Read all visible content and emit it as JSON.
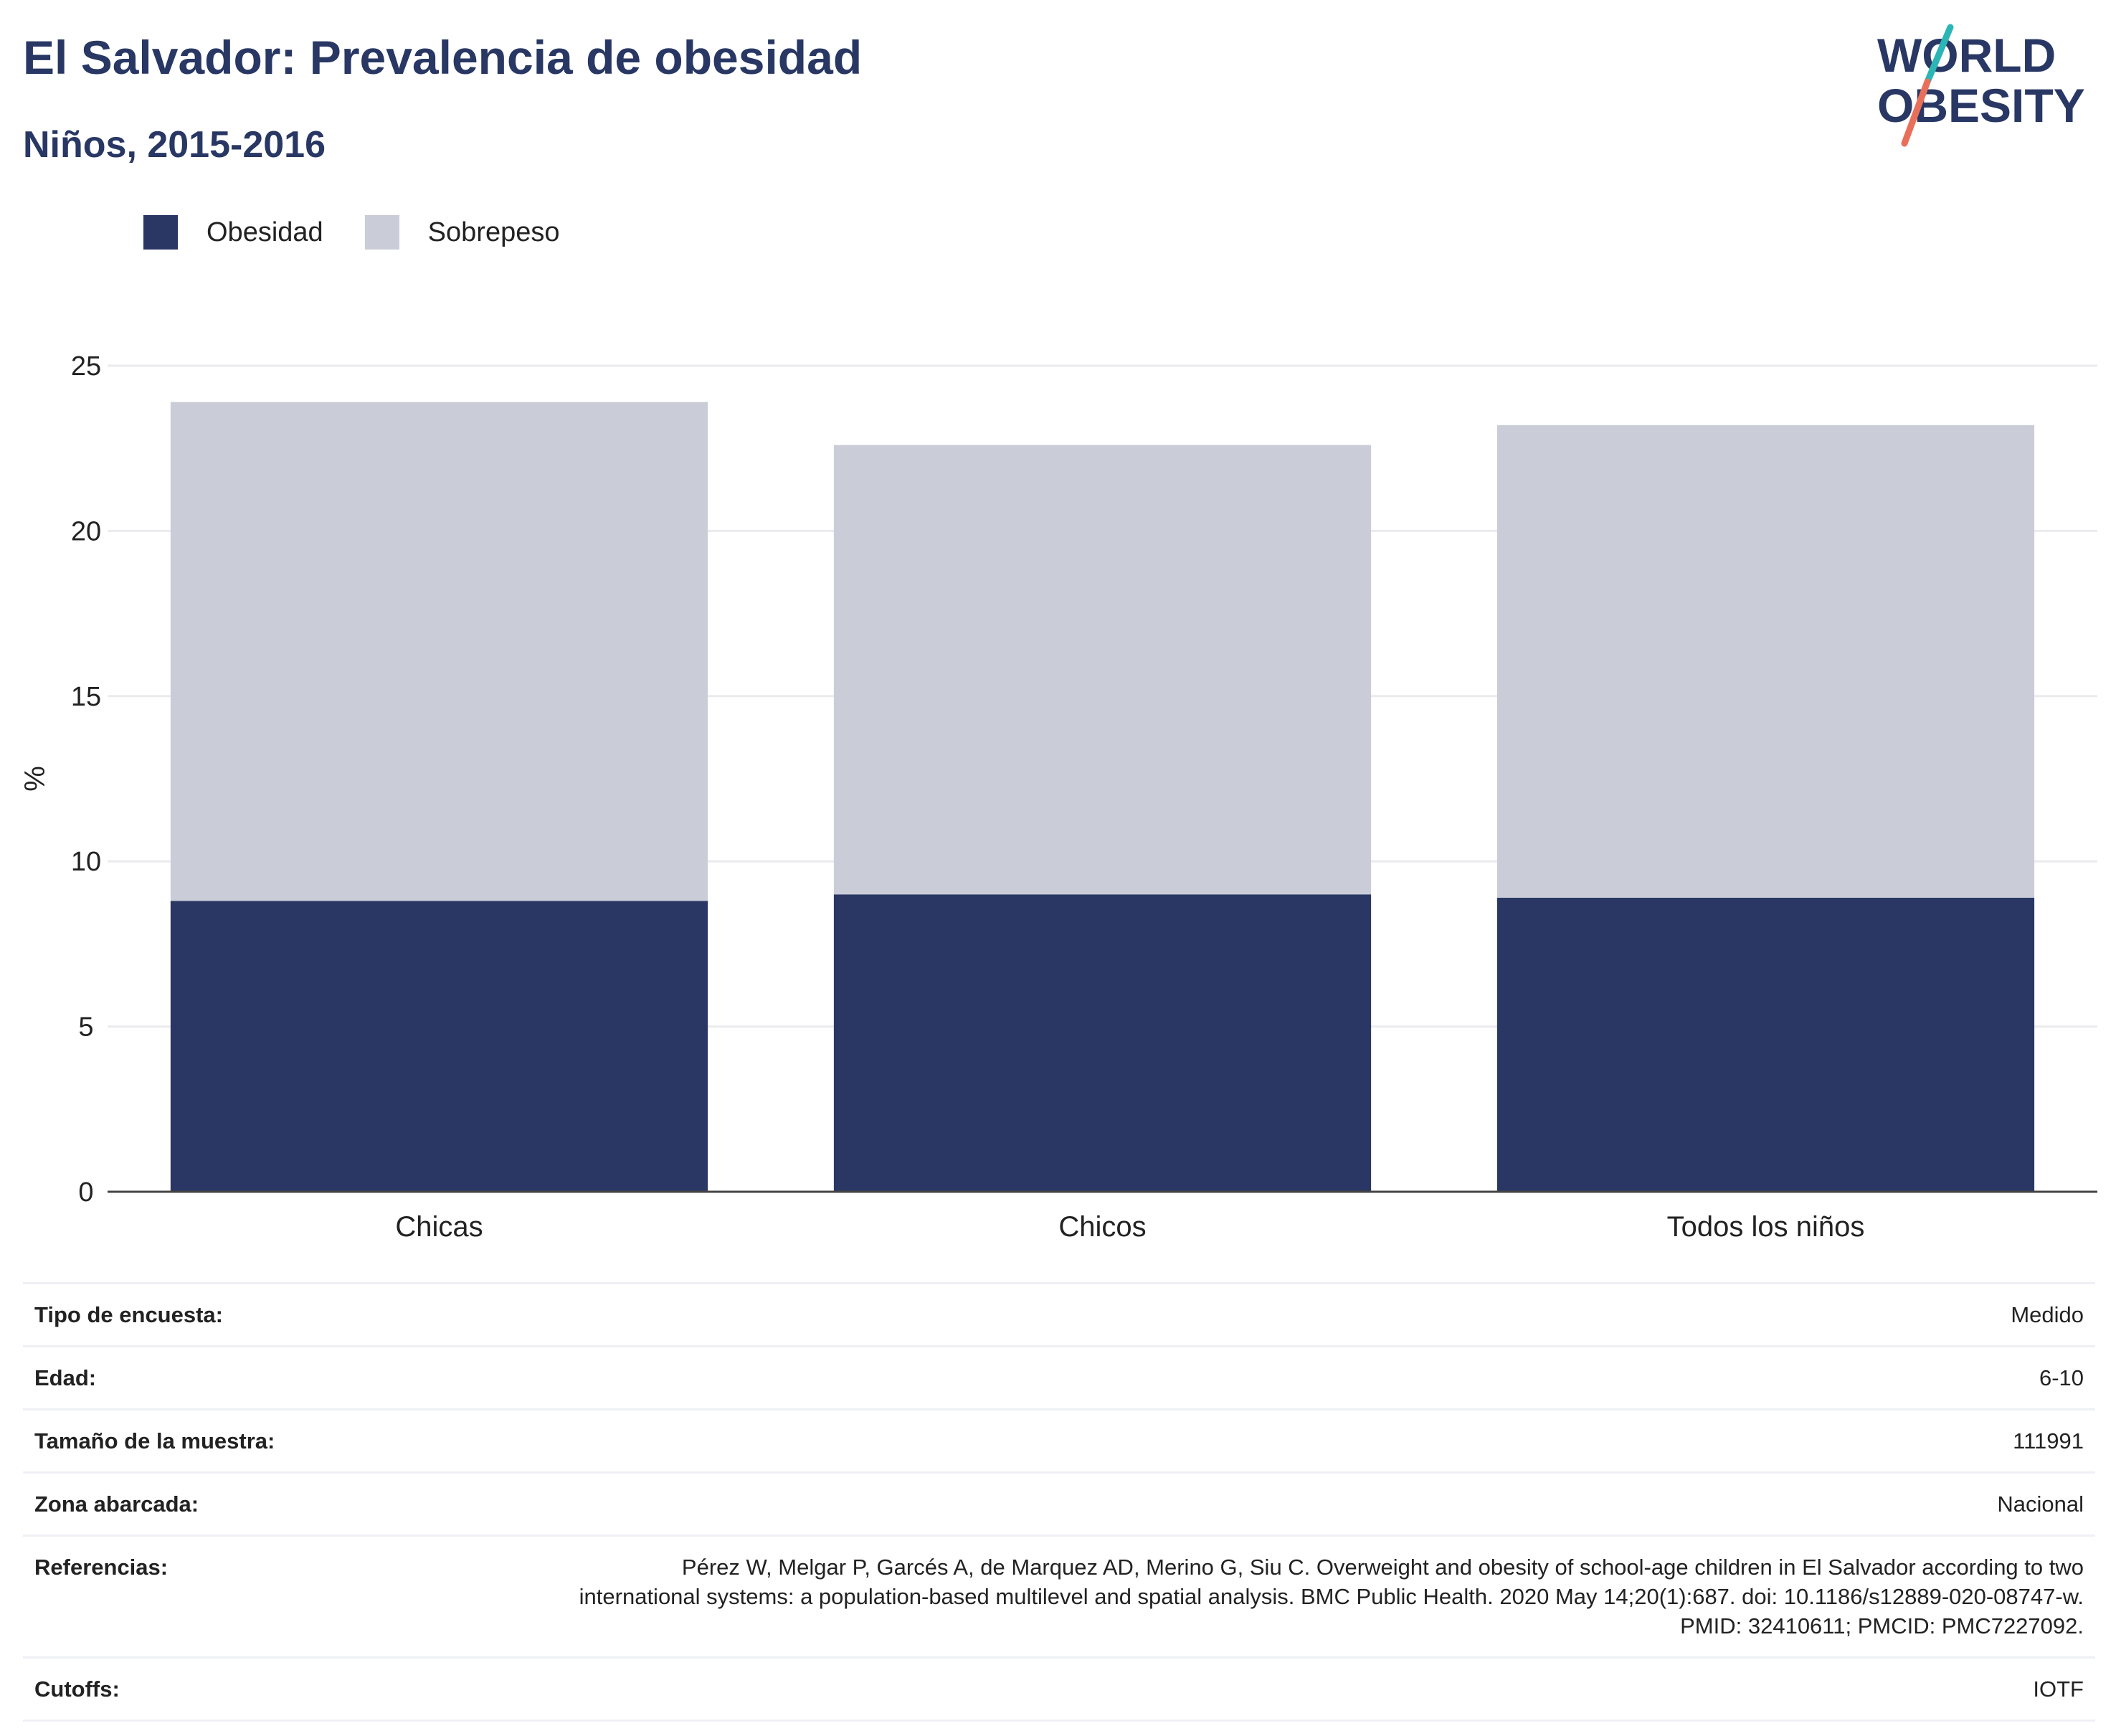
{
  "header": {
    "title": "El Salvador: Prevalencia de obesidad",
    "subtitle": "Niños, 2015-2016"
  },
  "logo": {
    "line1": "WORLD",
    "line2": "OBESITY",
    "colors": {
      "text": "#283763",
      "slash_top": "#2bb5b5",
      "slash_bottom": "#e8705a"
    }
  },
  "legend": {
    "items": [
      {
        "label": "Obesidad",
        "color": "#2a3764"
      },
      {
        "label": "Sobrepeso",
        "color": "#cacdd8"
      }
    ]
  },
  "chart_data": {
    "type": "bar",
    "stacked": true,
    "categories": [
      "Chicas",
      "Chicos",
      "Todos los niños"
    ],
    "series": [
      {
        "name": "Obesidad",
        "values": [
          8.8,
          9.0,
          8.9
        ],
        "color": "#2a3764"
      },
      {
        "name": "Sobrepeso",
        "values": [
          15.1,
          13.6,
          14.3
        ],
        "color": "#cacdd8"
      }
    ],
    "ylabel": "%",
    "ylim": [
      0,
      25
    ],
    "yticks": [
      0,
      5,
      10,
      15,
      20,
      25
    ],
    "grid": true,
    "legend_position": "top-left"
  },
  "info": [
    {
      "key": "Tipo de encuesta:",
      "value": "Medido"
    },
    {
      "key": "Edad:",
      "value": "6-10"
    },
    {
      "key": "Tamaño de la muestra:",
      "value": "111991"
    },
    {
      "key": "Zona abarcada:",
      "value": "Nacional"
    },
    {
      "key": "Referencias:",
      "value": "Pérez W, Melgar P, Garcés A, de Marquez AD, Merino G, Siu C. Overweight and obesity of school-age children in El Salvador according to two international systems: a population-based multilevel and spatial analysis. BMC Public Health. 2020 May 14;20(1):687. doi: 10.1186/s12889-020-08747-w. PMID: 32410611; PMCID: PMC7227092."
    },
    {
      "key": "Cutoffs:",
      "value": "IOTF"
    }
  ]
}
